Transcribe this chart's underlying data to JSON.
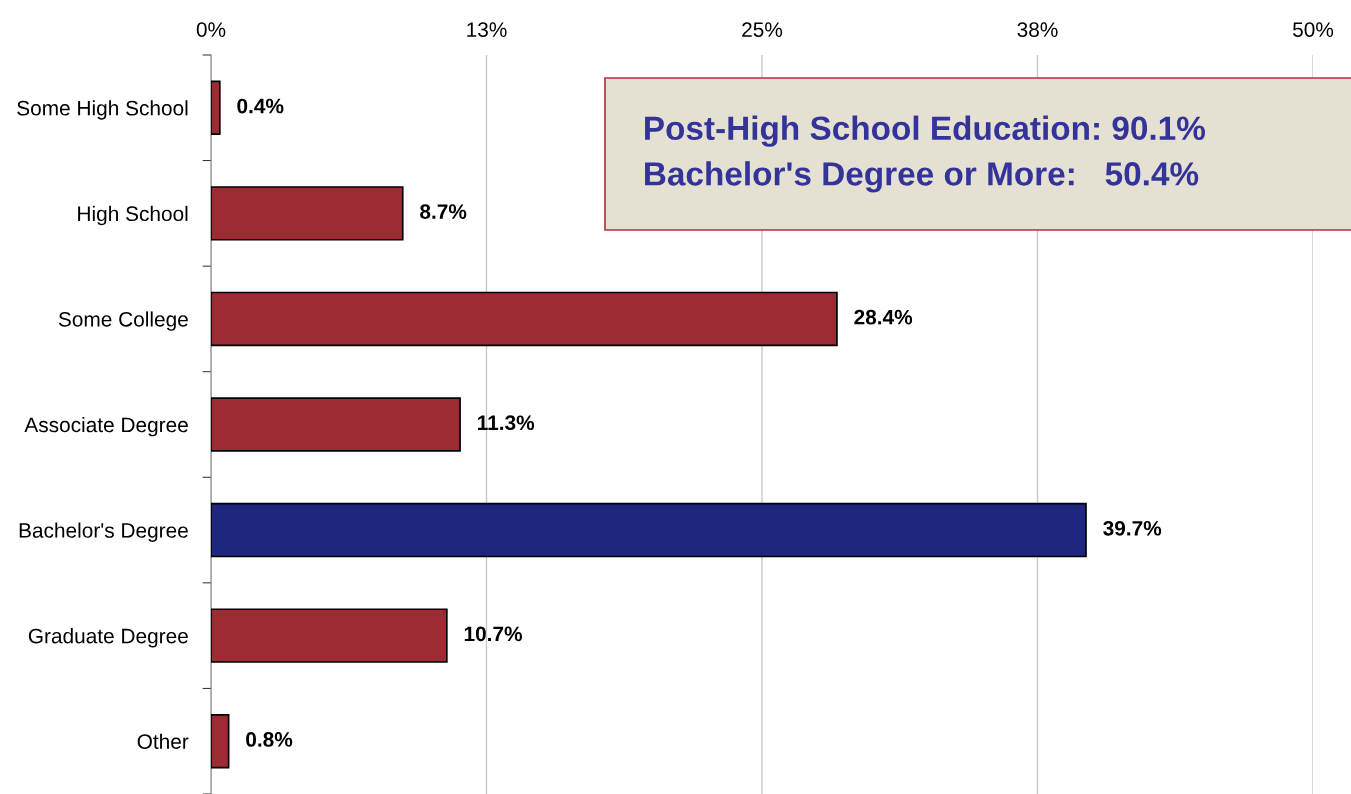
{
  "chart_data": {
    "type": "bar",
    "orientation": "horizontal",
    "categories": [
      "Some High School",
      "High School",
      "Some College",
      "Associate Degree",
      "Bachelor's Degree",
      "Graduate Degree",
      "Other"
    ],
    "values": [
      0.4,
      8.7,
      28.4,
      11.3,
      39.7,
      10.7,
      0.8
    ],
    "colors": [
      "#9e2a33",
      "#9e2a33",
      "#9e2a33",
      "#9e2a33",
      "#1f2680",
      "#9e2a33",
      "#9e2a33"
    ],
    "value_labels": [
      "0.4%",
      "8.7%",
      "28.4%",
      "11.3%",
      "39.7%",
      "10.7%",
      "0.8%"
    ],
    "xlim": [
      0,
      50
    ],
    "xticks": [
      {
        "value": 0,
        "label": "0%"
      },
      {
        "value": 12.5,
        "label": "13%"
      },
      {
        "value": 25,
        "label": "25%"
      },
      {
        "value": 37.5,
        "label": "38%"
      },
      {
        "value": 50,
        "label": "50%"
      }
    ],
    "grid": "x",
    "legend": false,
    "annotations": [
      "Post-High School Education: 90.1%",
      "Bachelor's Degree or More:   50.4%"
    ]
  }
}
